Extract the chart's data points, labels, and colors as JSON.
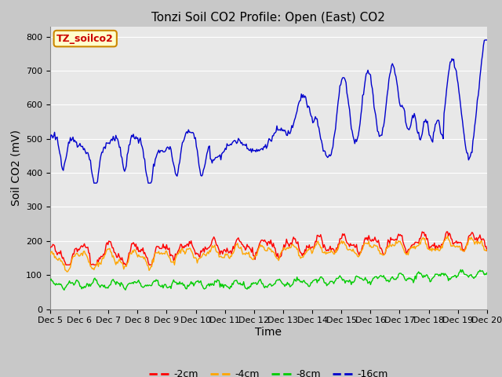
{
  "title": "Tonzi Soil CO2 Profile: Open (East) CO2",
  "ylabel": "Soil CO2 (mV)",
  "xlabel": "Time",
  "legend_label": "TZ_soilco2",
  "ylim": [
    0,
    830
  ],
  "yticks": [
    0,
    100,
    200,
    300,
    400,
    500,
    600,
    700,
    800
  ],
  "line_colors": {
    "-2cm": "#ff0000",
    "-4cm": "#ffa500",
    "-8cm": "#00cc00",
    "-16cm": "#0000cc"
  },
  "legend_entries": [
    "-2cm",
    "-4cm",
    "-8cm",
    "-16cm"
  ],
  "n_points": 500,
  "x_start": 5.0,
  "x_end": 20.0,
  "xtick_positions": [
    5,
    6,
    7,
    8,
    9,
    10,
    11,
    12,
    13,
    14,
    15,
    16,
    17,
    18,
    19,
    20
  ],
  "xtick_labels": [
    "Dec 5",
    "Dec 6",
    "Dec 7",
    "Dec 8",
    "Dec 9",
    "Dec 10",
    "Dec 11",
    "Dec 12",
    "Dec 13",
    "Dec 14",
    "Dec 15",
    "Dec 16",
    "Dec 17",
    "Dec 18",
    "Dec 19",
    "Dec 20"
  ],
  "title_fontsize": 11,
  "axis_label_fontsize": 10,
  "tick_fontsize": 8,
  "fig_width": 6.4,
  "fig_height": 4.8,
  "dpi": 100
}
